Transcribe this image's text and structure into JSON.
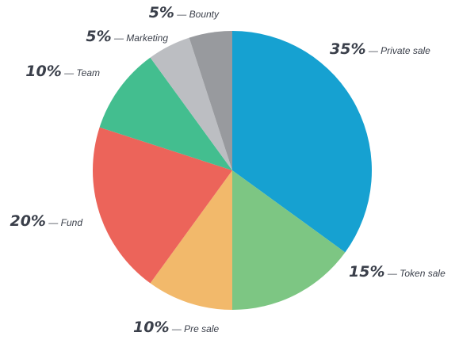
{
  "chart_data": {
    "type": "pie",
    "slices": [
      {
        "label": "Private sale",
        "value": 35,
        "pct_text": "35%",
        "color": "#16a1d1",
        "label_anchor": "start"
      },
      {
        "label": "Token sale",
        "value": 15,
        "pct_text": "15%",
        "color": "#7dc683",
        "label_anchor": "start"
      },
      {
        "label": "Pre sale",
        "value": 10,
        "pct_text": "10%",
        "color": "#f2b96b",
        "label_anchor": "start"
      },
      {
        "label": "Fund",
        "value": 20,
        "pct_text": "20%",
        "color": "#ec645a",
        "label_anchor": "end"
      },
      {
        "label": "Team",
        "value": 10,
        "pct_text": "10%",
        "color": "#43be8f",
        "label_anchor": "end"
      },
      {
        "label": "Marketing",
        "value": 5,
        "pct_text": "5%",
        "color": "#bcbec2",
        "label_anchor": "end"
      },
      {
        "label": "Bounty",
        "value": 5,
        "pct_text": "5%",
        "color": "#989a9e",
        "label_anchor": "end"
      }
    ],
    "separator": " — "
  }
}
